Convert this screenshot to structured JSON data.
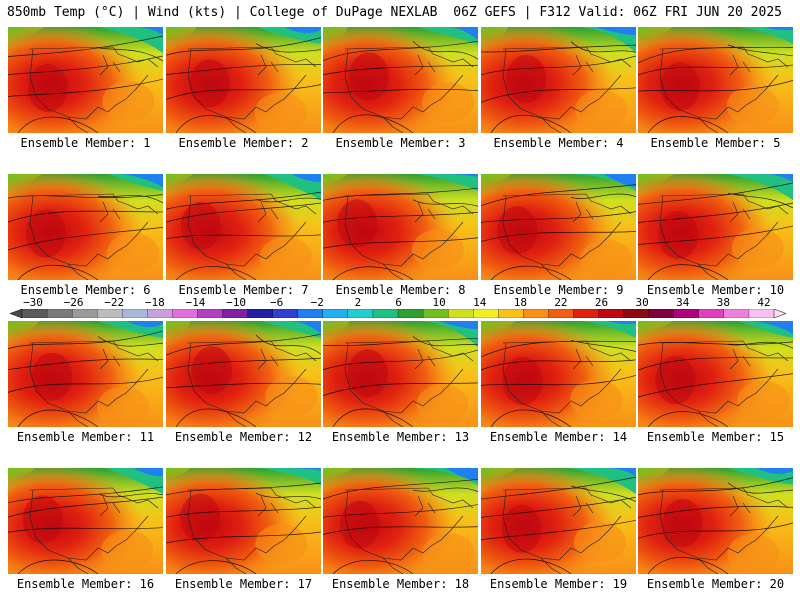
{
  "header": {
    "title_left": "850mb Temp (°C) | Wind (kts) | College of DuPage NEXLAB",
    "title_right": "06Z GEFS | F312 Valid: 06Z FRI JUN 20 2025"
  },
  "panels": [
    {
      "label": "Ensemble Member: 1"
    },
    {
      "label": "Ensemble Member: 2"
    },
    {
      "label": "Ensemble Member: 3"
    },
    {
      "label": "Ensemble Member: 4"
    },
    {
      "label": "Ensemble Member: 5"
    },
    {
      "label": "Ensemble Member: 6"
    },
    {
      "label": "Ensemble Member: 7"
    },
    {
      "label": "Ensemble Member: 8"
    },
    {
      "label": "Ensemble Member: 9"
    },
    {
      "label": "Ensemble Member: 10"
    },
    {
      "label": "Ensemble Member: 11"
    },
    {
      "label": "Ensemble Member: 12"
    },
    {
      "label": "Ensemble Member: 13"
    },
    {
      "label": "Ensemble Member: 14"
    },
    {
      "label": "Ensemble Member: 15"
    },
    {
      "label": "Ensemble Member: 16"
    },
    {
      "label": "Ensemble Member: 17"
    },
    {
      "label": "Ensemble Member: 18"
    },
    {
      "label": "Ensemble Member: 19"
    },
    {
      "label": "Ensemble Member: 20"
    }
  ],
  "colorbar": {
    "ticks": [
      "−30",
      "−26",
      "−22",
      "−18",
      "−14",
      "−10",
      "−6",
      "−2",
      "2",
      "6",
      "10",
      "14",
      "18",
      "22",
      "26",
      "30",
      "34",
      "38",
      "42"
    ],
    "colors": [
      "#5a5a5a",
      "#7a7a7a",
      "#9a9a9a",
      "#bcbcbc",
      "#a8b8d8",
      "#c9a0dc",
      "#e070e0",
      "#b040c0",
      "#8020a0",
      "#2020a0",
      "#3040d0",
      "#2080f0",
      "#20b0f0",
      "#20d0d0",
      "#20c080",
      "#30a030",
      "#70c020",
      "#d0e020",
      "#f0f020",
      "#f8c018",
      "#f89018",
      "#f06010",
      "#e02010",
      "#c00810",
      "#900810",
      "#800040",
      "#b00080",
      "#e040c0",
      "#f080e0",
      "#f8c0f0"
    ]
  }
}
